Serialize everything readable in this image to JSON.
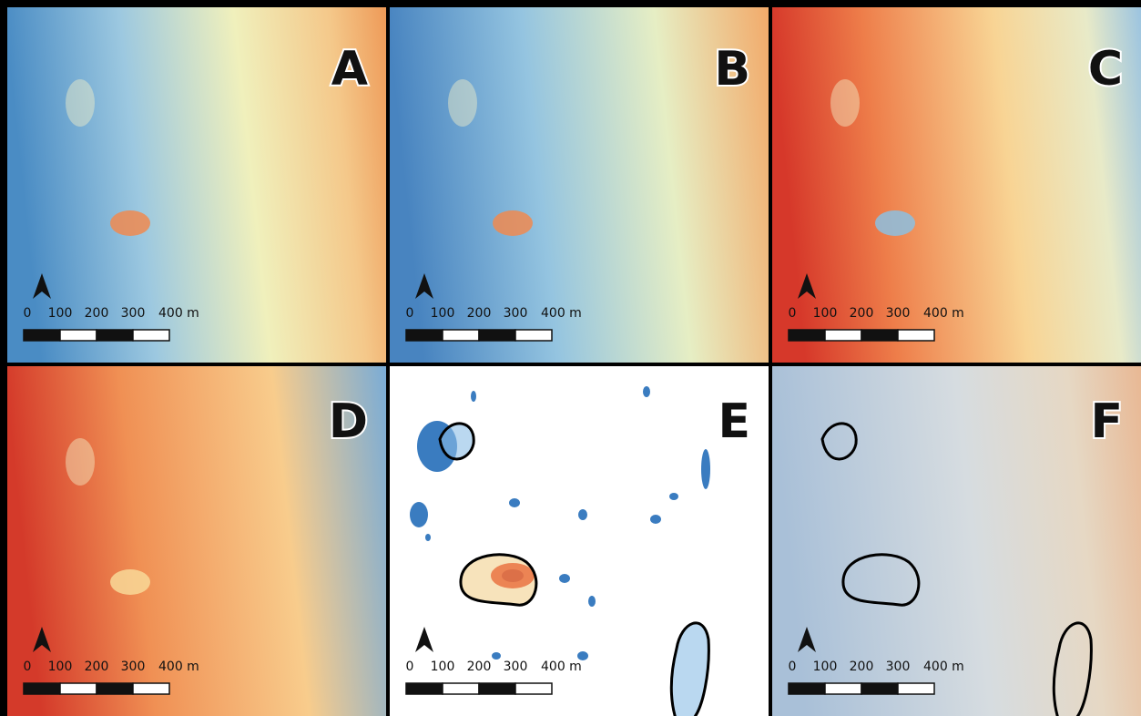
{
  "panels": [
    {
      "label": "A"
    },
    {
      "label": "B"
    },
    {
      "label": "C"
    },
    {
      "label": "D"
    },
    {
      "label": "E"
    },
    {
      "label": "F"
    }
  ],
  "scale_bar": {
    "labels": [
      "0",
      "100",
      "200",
      "300",
      "400 m"
    ]
  }
}
